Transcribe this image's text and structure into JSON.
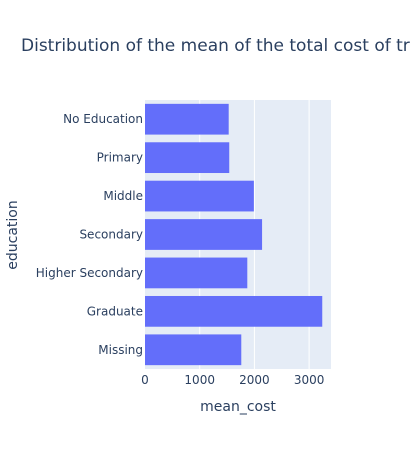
{
  "chart_data": {
    "type": "bar",
    "orientation": "horizontal",
    "title": "Distribution of the mean of the total cost of tr",
    "xlabel": "mean_cost",
    "ylabel": "education",
    "categories": [
      "No Education",
      "Primary",
      "Middle",
      "Secondary",
      "Higher Secondary",
      "Graduate",
      "Missing"
    ],
    "values": [
      1530,
      1540,
      1990,
      2140,
      1870,
      3240,
      1760
    ],
    "xlim": [
      0,
      3400
    ],
    "xticks": [
      0,
      1000,
      2000,
      3000
    ],
    "grid": true,
    "legend": "none",
    "colors": {
      "bar": "#636efa",
      "plot_bg": "#e5ecf6",
      "grid": "#ffffff",
      "text": "#2a3f5f"
    }
  }
}
